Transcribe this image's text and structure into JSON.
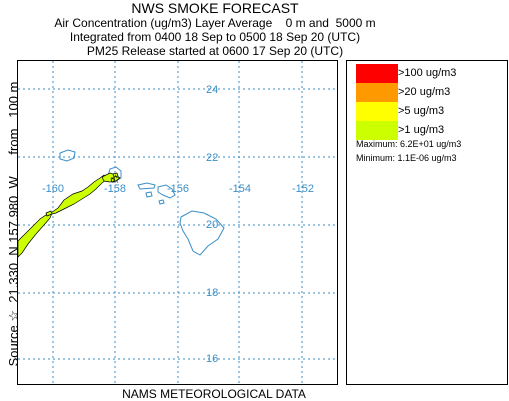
{
  "header": {
    "title": "NWS SMOKE FORECAST",
    "line2": "Air Concentration (ug/m3) Layer Average    0 m and  5000 m",
    "line3": "Integrated from 0400 18 Sep to 0500 18 Sep 20 (UTC)",
    "line4": "PM25 Release started at 0600 17 Sep 20 (UTC)"
  },
  "source_label": "Source ☆  21.330  N 157.980  W      from   100 m",
  "footer": "NAMS METEOROLOGICAL DATA",
  "map": {
    "lat_labels": [
      "24",
      "22",
      "20",
      "18",
      "16"
    ],
    "lon_labels": [
      "-160",
      "-158",
      "-156",
      "-154",
      "-152"
    ],
    "colors": {
      "grid": "#3b8fc7",
      "land": "#3b8fc7",
      "plume": "#ccff00",
      "plume_outline": "#000000"
    }
  },
  "legend": {
    "items": [
      {
        "label": ">100 ug/m3",
        "color": "#ff0000"
      },
      {
        "label": ">20 ug/m3",
        "color": "#ff9900"
      },
      {
        "label": ">5 ug/m3",
        "color": "#ffff00"
      },
      {
        "label": ">1 ug/m3",
        "color": "#ccff00"
      }
    ],
    "maximum": "Maximum: 6.2E+01 ug/m3",
    "minimum": "Minimum: 1.1E-06 ug/m3"
  }
}
